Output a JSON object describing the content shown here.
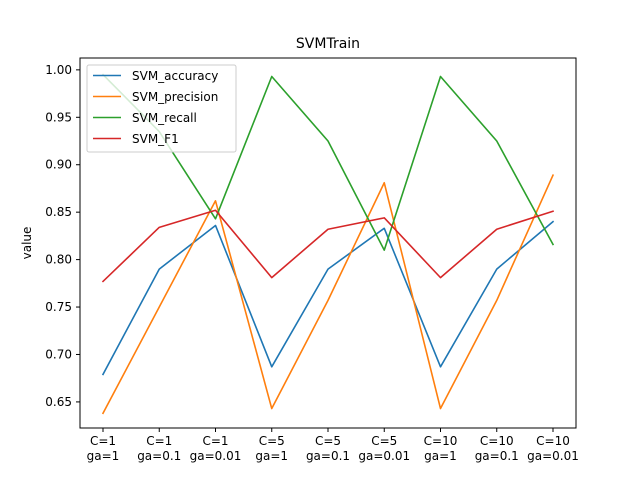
{
  "chart_data": {
    "type": "line",
    "title": "SVMTrain",
    "xlabel": "",
    "ylabel": "value",
    "categories": [
      [
        "C=1",
        "ga=1"
      ],
      [
        "C=1",
        "ga=0.1"
      ],
      [
        "C=1",
        "ga=0.01"
      ],
      [
        "C=5",
        "ga=1"
      ],
      [
        "C=5",
        "ga=0.1"
      ],
      [
        "C=5",
        "ga=0.01"
      ],
      [
        "C=10",
        "ga=1"
      ],
      [
        "C=10",
        "ga=0.1"
      ],
      [
        "C=10",
        "ga=0.01"
      ]
    ],
    "ylim": [
      0.6225,
      1.0125
    ],
    "yticks": [
      "0.65",
      "0.70",
      "0.75",
      "0.80",
      "0.85",
      "0.90",
      "0.95",
      "1.00"
    ],
    "grid": false,
    "legend_position": "top-left",
    "series": [
      {
        "name": "SVM_accuracy",
        "color": "#1f77b4",
        "values": [
          0.679,
          0.79,
          0.836,
          0.687,
          0.79,
          0.833,
          0.687,
          0.79,
          0.84
        ]
      },
      {
        "name": "SVM_precision",
        "color": "#ff7f0e",
        "values": [
          0.638,
          0.75,
          0.862,
          0.643,
          0.757,
          0.881,
          0.643,
          0.757,
          0.889
        ]
      },
      {
        "name": "SVM_recall",
        "color": "#2ca02c",
        "values": [
          0.995,
          0.935,
          0.843,
          0.993,
          0.925,
          0.81,
          0.993,
          0.925,
          0.816
        ]
      },
      {
        "name": "SVM_F1",
        "color": "#d62728",
        "values": [
          0.777,
          0.834,
          0.852,
          0.781,
          0.832,
          0.844,
          0.781,
          0.832,
          0.851
        ]
      }
    ]
  }
}
